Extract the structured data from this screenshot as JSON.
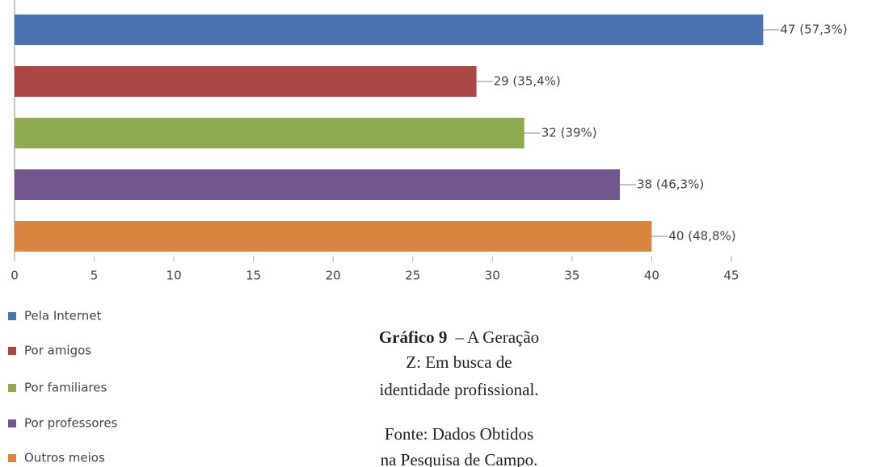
{
  "chart_data": {
    "type": "hbar",
    "categories": [
      "Pela Internet",
      "Por amigos",
      "Por familiares",
      "Por professores",
      "Outros meios"
    ],
    "values": [
      47,
      29,
      32,
      38,
      40
    ],
    "value_labels": [
      "47 (57,3%)",
      "29 (35,4%)",
      "32 (39%)",
      "38 (46,3%)",
      "40 (48,8%)"
    ],
    "colors": [
      "#4a72b0",
      "#aa4644",
      "#8fab50",
      "#72578f",
      "#d9843f"
    ],
    "xlim": [
      0,
      50
    ],
    "xticks": [
      0,
      5,
      10,
      15,
      20,
      25,
      30,
      35,
      40,
      45
    ],
    "legend": "bottom-left",
    "caption_label": "Gráfico 9",
    "caption_lines": [
      "– A Geração",
      "Z: Em busca de",
      "identidade profissional."
    ],
    "source_lines": [
      "Fonte: Dados Obtidos",
      "na Pesquisa de Campo."
    ]
  }
}
